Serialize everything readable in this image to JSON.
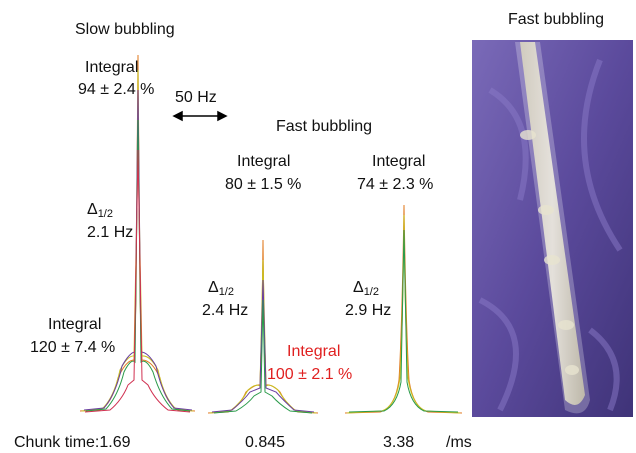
{
  "slow": {
    "title": "Slow bubbling",
    "integral_top": {
      "label": "Integral",
      "value": "94 ± 2.4 %"
    },
    "linewidth": {
      "symbol": "Δ",
      "subscript": "1/2",
      "value": "2.1 Hz"
    },
    "integral_bottom": {
      "label": "Integral",
      "value": "120 ± 7.4 %"
    },
    "chunk": "Chunk time:1.69"
  },
  "scale": "50 Hz",
  "fast": {
    "title": "Fast bubbling",
    "left": {
      "integral_top": {
        "label": "Integral",
        "value": "80 ± 1.5 %"
      },
      "linewidth": {
        "symbol": "Δ",
        "subscript": "1/2",
        "value": "2.4 Hz"
      },
      "integral_bottom": {
        "label": "Integral",
        "value": "100 ± 2.1 %"
      },
      "chunk": "0.845"
    },
    "right": {
      "integral_top": {
        "label": "Integral",
        "value": "74 ± 2.3 %"
      },
      "linewidth": {
        "symbol": "Δ",
        "subscript": "1/2",
        "value": "2.9 Hz"
      },
      "chunk": "3.38"
    }
  },
  "unit": "/ms",
  "photo": {
    "title": "Fast bubbling"
  }
}
